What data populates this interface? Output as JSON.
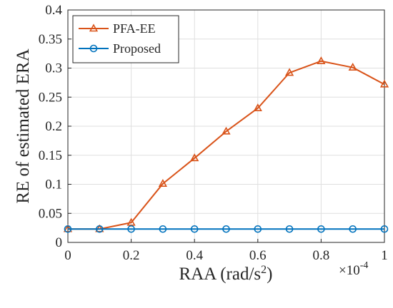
{
  "chart_data": {
    "type": "line",
    "title": "",
    "xlabel": "RAA (rad/s",
    "xlabel_sup": "2",
    "xlabel_suffix": ")",
    "ylabel": "RE of estimated ERA",
    "x_multiplier": {
      "base": "×10",
      "exponent": "-4"
    },
    "xlim": [
      0,
      1
    ],
    "ylim": [
      0,
      0.4
    ],
    "xticks": [
      0,
      0.2,
      0.4,
      0.6,
      0.8,
      1
    ],
    "xtick_labels": [
      "0",
      "0.2",
      "0.4",
      "0.6",
      "0.8",
      "1"
    ],
    "yticks": [
      0,
      0.05,
      0.1,
      0.15,
      0.2,
      0.25,
      0.3,
      0.35,
      0.4
    ],
    "ytick_labels": [
      "0",
      "0.05",
      "0.1",
      "0.15",
      "0.2",
      "0.25",
      "0.3",
      "0.35",
      "0.4"
    ],
    "grid": true,
    "legend_position": "top-left",
    "x": [
      0,
      0.1,
      0.2,
      0.3,
      0.4,
      0.5,
      0.6,
      0.7,
      0.8,
      0.9,
      1.0
    ],
    "series": [
      {
        "name": "PFA-EE",
        "marker": "triangle",
        "color": "#d95319",
        "values": [
          0.023,
          0.023,
          0.034,
          0.101,
          0.145,
          0.191,
          0.231,
          0.292,
          0.312,
          0.301,
          0.272
        ]
      },
      {
        "name": "Proposed",
        "marker": "circle",
        "color": "#0072bd",
        "values": [
          0.023,
          0.023,
          0.023,
          0.023,
          0.023,
          0.023,
          0.023,
          0.023,
          0.023,
          0.023,
          0.023
        ]
      }
    ]
  }
}
